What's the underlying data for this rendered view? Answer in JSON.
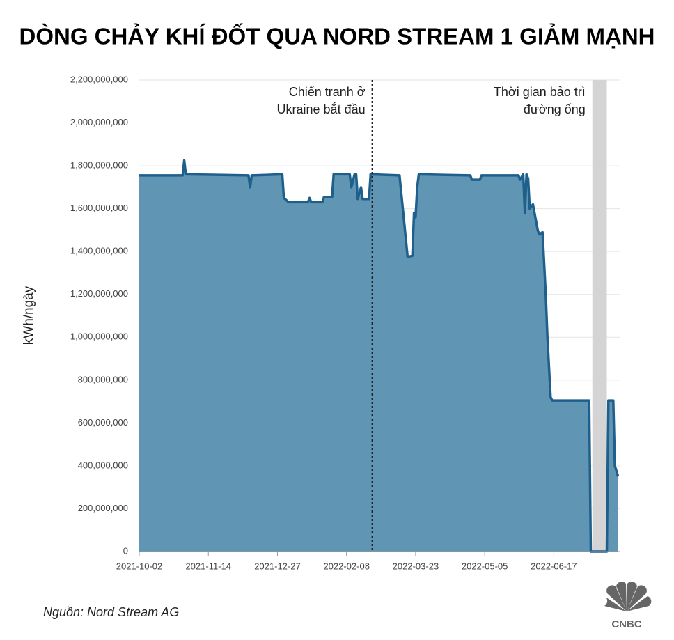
{
  "chart_data": {
    "type": "area",
    "title": "DÒNG CHẢY KHÍ ĐỐT QUA NORD STREAM 1 GIẢM MẠNH",
    "y_label": "kWh/ngày",
    "source": "Nguồn: Nord Stream AG",
    "logo_text": "CNBC",
    "color": "#6096b4",
    "line_color": "#1f5f8b",
    "grid": true,
    "xlim": [
      "2021-10-02",
      "2022-07-28"
    ],
    "xticks": [
      "2021-10-02",
      "2021-11-14",
      "2021-12-27",
      "2022-02-08",
      "2022-03-23",
      "2022-05-05",
      "2022-06-17"
    ],
    "ylim": [
      0,
      2200000000
    ],
    "yticks": [
      0,
      {
        "value": 200000000,
        "label": "200,000,000"
      },
      {
        "value": 400000000,
        "label": "400,000,000"
      },
      {
        "value": 600000000,
        "label": "600,000,000"
      },
      {
        "value": 800000000,
        "label": "800,000,000"
      },
      {
        "value": 1000000000,
        "label": "1,000,000,000"
      },
      {
        "value": 1200000000,
        "label": "1,200,000,000"
      },
      {
        "value": 1400000000,
        "label": "1,400,000,000"
      },
      {
        "value": 1600000000,
        "label": "1,600,000,000"
      },
      {
        "value": 1800000000,
        "label": "1,800,000,000"
      },
      {
        "value": 2000000000,
        "label": "2,000,000,000"
      },
      {
        "value": 2200000000,
        "label": "2,200,000,000"
      }
    ],
    "annotations": [
      {
        "type": "vline",
        "x": "2022-02-24",
        "text": [
          "Chiến tranh ở",
          "Ukraine bắt đầu"
        ]
      },
      {
        "type": "span",
        "x": [
          "2022-07-11",
          "2022-07-20"
        ],
        "text": [
          "Thời gian bảo trì",
          "đường ống"
        ]
      }
    ],
    "x": [
      "2021-10-02",
      "2021-10-29",
      "2021-10-30",
      "2021-10-31",
      "2021-12-09",
      "2021-12-10",
      "2021-12-11",
      "2021-12-30",
      "2021-12-31",
      "2022-01-03",
      "2022-01-15",
      "2022-01-16",
      "2022-01-17",
      "2022-01-24",
      "2022-01-25",
      "2022-01-30",
      "2022-01-31",
      "2022-02-10",
      "2022-02-11",
      "2022-02-13",
      "2022-02-14",
      "2022-02-15",
      "2022-02-17",
      "2022-02-18",
      "2022-02-22",
      "2022-02-23",
      "2022-03-13",
      "2022-03-18",
      "2022-03-21",
      "2022-03-22",
      "2022-03-23",
      "2022-03-24",
      "2022-03-25",
      "2022-04-26",
      "2022-04-27",
      "2022-05-02",
      "2022-05-03",
      "2022-05-26",
      "2022-05-27",
      "2022-05-29",
      "2022-05-30",
      "2022-05-31",
      "2022-06-01",
      "2022-06-02",
      "2022-06-04",
      "2022-06-05",
      "2022-06-07",
      "2022-06-08",
      "2022-06-10",
      "2022-06-12",
      "2022-06-13",
      "2022-06-15",
      "2022-06-16",
      "2022-07-09",
      "2022-07-10",
      "2022-07-20",
      "2022-07-21",
      "2022-07-24",
      "2022-07-25",
      "2022-07-27"
    ],
    "values": [
      1755000000,
      1755000000,
      1825000000,
      1760000000,
      1755000000,
      1700000000,
      1755000000,
      1760000000,
      1650000000,
      1630000000,
      1630000000,
      1650000000,
      1630000000,
      1630000000,
      1655000000,
      1655000000,
      1760000000,
      1760000000,
      1700000000,
      1760000000,
      1760000000,
      1645000000,
      1700000000,
      1645000000,
      1645000000,
      1760000000,
      1755000000,
      1375000000,
      1380000000,
      1580000000,
      1560000000,
      1700000000,
      1760000000,
      1755000000,
      1735000000,
      1735000000,
      1755000000,
      1755000000,
      1735000000,
      1760000000,
      1580000000,
      1760000000,
      1740000000,
      1600000000,
      1620000000,
      1580000000,
      1500000000,
      1480000000,
      1490000000,
      1200000000,
      1000000000,
      720000000,
      705000000,
      705000000,
      0,
      0,
      705000000,
      705000000,
      400000000,
      350000000
    ]
  }
}
